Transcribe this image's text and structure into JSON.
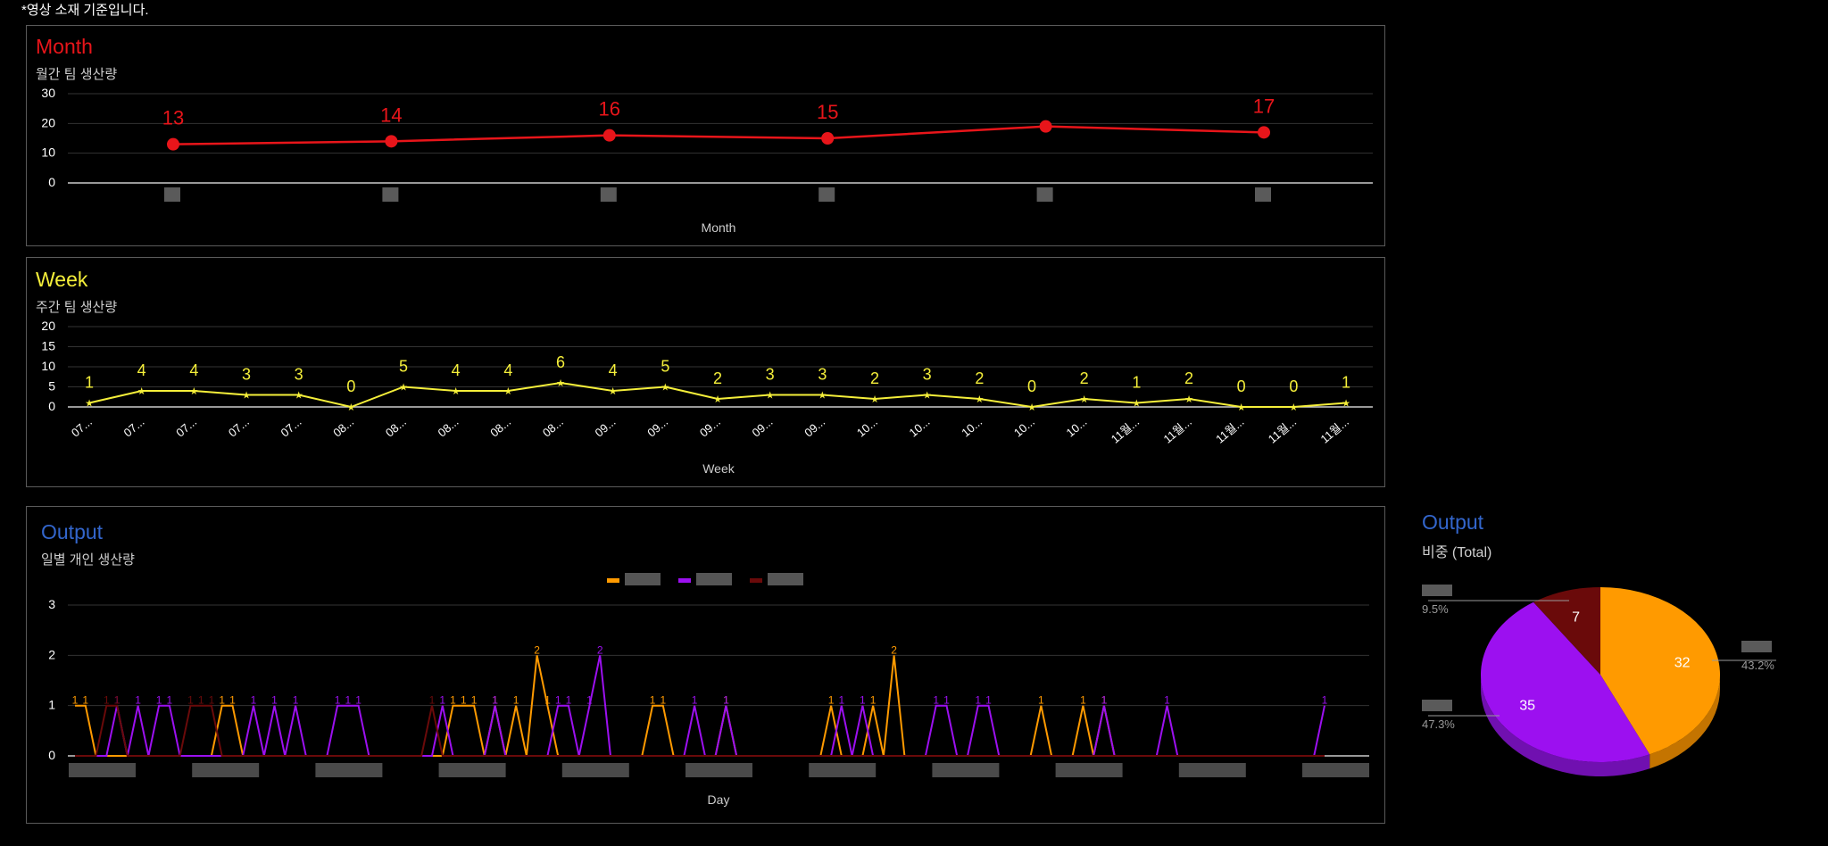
{
  "note": "*영상 소재 기준입니다.",
  "colors": {
    "month": "#e8151a",
    "week": "#f5ef3a",
    "blue": "#3366cc",
    "orange": "#ff9a00",
    "purple": "#9c10f0",
    "darkred": "#6a0a0a",
    "grid": "#333333",
    "axis": "#cccccc"
  },
  "chart_data": [
    {
      "type": "line",
      "title": "Month",
      "subtitle": "월간 팀 생산량",
      "xlabel": "Month",
      "ylabel": "",
      "ylim": [
        0,
        30
      ],
      "yticks": [
        0,
        10,
        20,
        30
      ],
      "categories": [
        "",
        "",
        "",
        "",
        "",
        ""
      ],
      "series": [
        {
          "values": [
            13,
            14,
            16,
            15,
            19,
            17
          ],
          "data_labels": [
            "13",
            "14",
            "16",
            "15",
            "",
            "17"
          ]
        }
      ],
      "grid": true,
      "legend": "none"
    },
    {
      "type": "line",
      "title": "Week",
      "subtitle": "주간 팀 생산량",
      "xlabel": "Week",
      "ylabel": "",
      "ylim": [
        0,
        20
      ],
      "yticks": [
        0,
        5,
        10,
        15,
        20
      ],
      "categories": [
        "07...",
        "07...",
        "07...",
        "07...",
        "07...",
        "08...",
        "08...",
        "08...",
        "08...",
        "08...",
        "09...",
        "09...",
        "09...",
        "09...",
        "09...",
        "10...",
        "10...",
        "10...",
        "10...",
        "10...",
        "11월...",
        "11월...",
        "11월...",
        "11월...",
        "11월..."
      ],
      "series": [
        {
          "values": [
            1,
            4,
            4,
            3,
            3,
            0,
            5,
            4,
            4,
            6,
            4,
            5,
            2,
            3,
            3,
            2,
            3,
            2,
            0,
            2,
            1,
            2,
            0,
            0,
            1
          ]
        }
      ],
      "grid": true,
      "legend": "none"
    },
    {
      "type": "line",
      "title": "Output",
      "subtitle": "일별 개인 생산량",
      "xlabel": "Day",
      "ylabel": "",
      "ylim": [
        0,
        3
      ],
      "yticks": [
        0,
        1,
        2,
        3
      ],
      "x_count": 120,
      "series": [
        {
          "color_key": "orange",
          "points": [
            [
              0,
              1
            ],
            [
              1,
              1
            ],
            [
              14,
              1
            ],
            [
              15,
              1
            ],
            [
              36,
              1
            ],
            [
              37,
              1
            ],
            [
              38,
              1
            ],
            [
              40,
              1
            ],
            [
              42,
              1
            ],
            [
              44,
              2
            ],
            [
              45,
              1
            ],
            [
              55,
              1
            ],
            [
              56,
              1
            ],
            [
              62,
              1
            ],
            [
              72,
              1
            ],
            [
              76,
              1
            ],
            [
              78,
              2
            ],
            [
              92,
              1
            ],
            [
              96,
              1
            ],
            [
              98,
              1
            ]
          ]
        },
        {
          "color_key": "purple",
          "points": [
            [
              4,
              1
            ],
            [
              6,
              1
            ],
            [
              8,
              1
            ],
            [
              9,
              1
            ],
            [
              17,
              1
            ],
            [
              19,
              1
            ],
            [
              21,
              1
            ],
            [
              25,
              1
            ],
            [
              26,
              1
            ],
            [
              27,
              1
            ],
            [
              35,
              1
            ],
            [
              40,
              1
            ],
            [
              46,
              1
            ],
            [
              47,
              1
            ],
            [
              49,
              1
            ],
            [
              50,
              2
            ],
            [
              59,
              1
            ],
            [
              62,
              1
            ],
            [
              73,
              1
            ],
            [
              75,
              1
            ],
            [
              82,
              1
            ],
            [
              83,
              1
            ],
            [
              86,
              1
            ],
            [
              87,
              1
            ],
            [
              98,
              1
            ],
            [
              104,
              1
            ],
            [
              119,
              1
            ]
          ]
        },
        {
          "color_key": "darkred",
          "points": [
            [
              3,
              1
            ],
            [
              4,
              1
            ],
            [
              11,
              1
            ],
            [
              12,
              1
            ],
            [
              13,
              1
            ],
            [
              34,
              1
            ]
          ]
        }
      ],
      "grid": true,
      "legend": "top"
    },
    {
      "type": "pie",
      "title": "Output",
      "subtitle": "비중 (Total)",
      "slices": [
        {
          "value": 32,
          "percent": "43.2%",
          "color_key": "orange"
        },
        {
          "value": 35,
          "percent": "47.3%",
          "color_key": "purple"
        },
        {
          "value": 7,
          "percent": "9.5%",
          "color_key": "darkred"
        }
      ],
      "legend": "labeled"
    }
  ]
}
